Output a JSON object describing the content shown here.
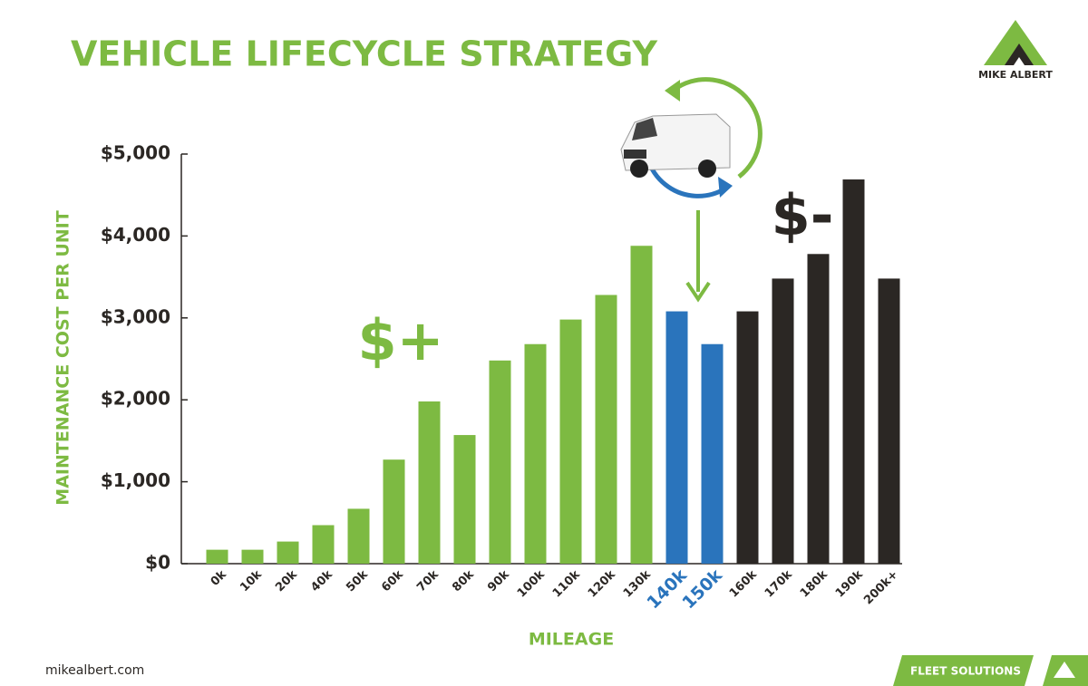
{
  "chart_data": {
    "type": "bar",
    "title": "VEHICLE LIFECYCLE STRATEGY",
    "y_label": "MAINTENANCE COST PER UNIT",
    "x_label": "MILEAGE",
    "categories": [
      "0k",
      "10k",
      "20k",
      "40k",
      "50k",
      "60k",
      "70k",
      "80k",
      "90k",
      "100k",
      "110k",
      "120k",
      "130k",
      "140k",
      "150k",
      "160k",
      "170k",
      "180k",
      "190k",
      "200k+"
    ],
    "values": [
      170,
      170,
      270,
      470,
      670,
      1270,
      1980,
      1570,
      2480,
      2680,
      2980,
      3280,
      3880,
      3080,
      2680,
      3080,
      3480,
      3780,
      4690,
      3480
    ],
    "colors": [
      "#7dba42",
      "#7dba42",
      "#7dba42",
      "#7dba42",
      "#7dba42",
      "#7dba42",
      "#7dba42",
      "#7dba42",
      "#7dba42",
      "#7dba42",
      "#7dba42",
      "#7dba42",
      "#7dba42",
      "#2a74bc",
      "#2a74bc",
      "#2b2724",
      "#2b2724",
      "#2b2724",
      "#2b2724",
      "#2b2724"
    ],
    "label_colors": [
      "#2b2724",
      "#2b2724",
      "#2b2724",
      "#2b2724",
      "#2b2724",
      "#2b2724",
      "#2b2724",
      "#2b2724",
      "#2b2724",
      "#2b2724",
      "#2b2724",
      "#2b2724",
      "#2b2724",
      "#2a74bc",
      "#2a74bc",
      "#2b2724",
      "#2b2724",
      "#2b2724",
      "#2b2724",
      "#2b2724"
    ],
    "ylim": [
      0,
      5000
    ],
    "yticks": [
      {
        "value": 0,
        "label": "$0"
      },
      {
        "value": 1000,
        "label": "$1,000"
      },
      {
        "value": 2000,
        "label": "$2,000"
      },
      {
        "value": 3000,
        "label": "$3,000"
      },
      {
        "value": 4000,
        "label": "$4,000"
      },
      {
        "value": 5000,
        "label": "$5,000"
      }
    ],
    "annotations": [
      {
        "text": "$+",
        "color": "#7dba42"
      },
      {
        "text": "$-",
        "color": "#2b2724"
      }
    ]
  },
  "brand": "MIKE ALBERT",
  "website": "mikealbert.com",
  "banner": "FLEET SOLUTIONS"
}
